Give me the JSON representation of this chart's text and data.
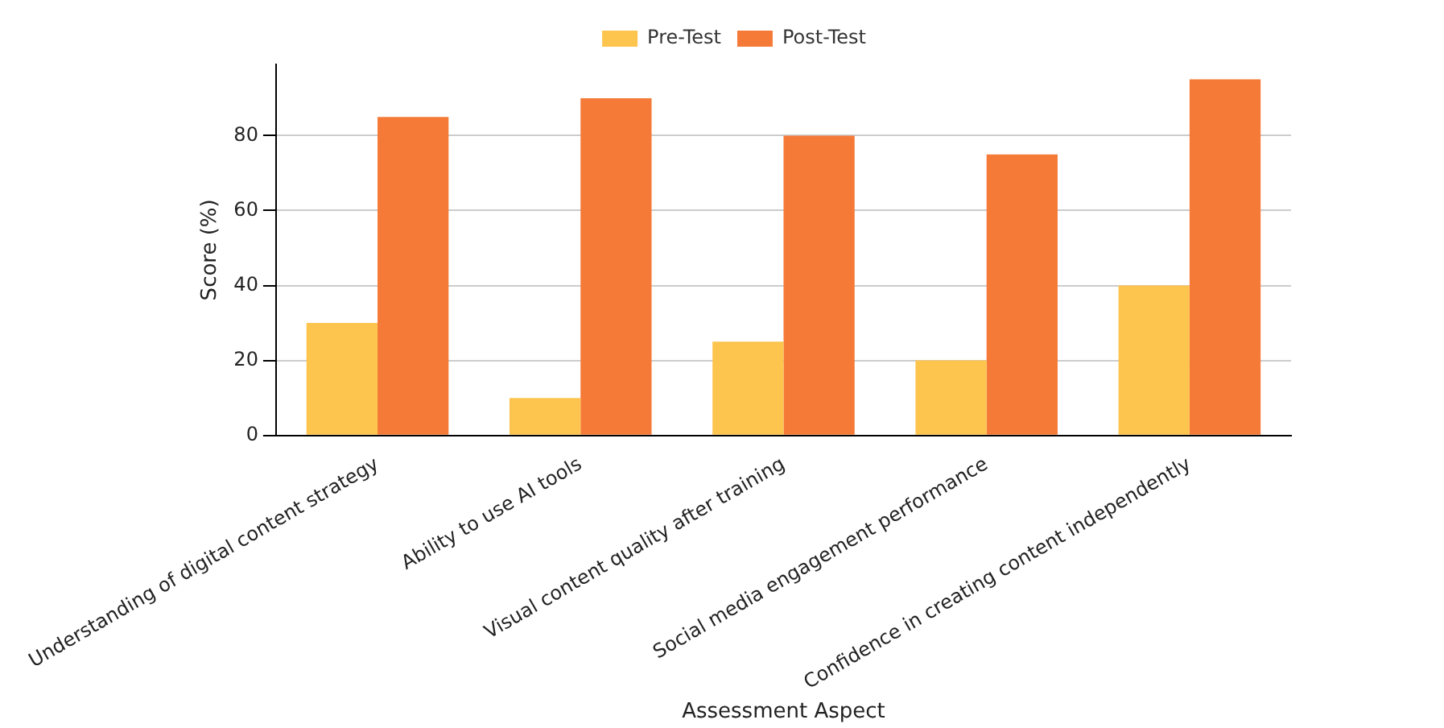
{
  "chart_data": {
    "type": "bar",
    "xlabel": "Assessment Aspect",
    "ylabel": "Score (%)",
    "categories": [
      "Understanding of digital content strategy",
      "Ability to use AI tools",
      "Visual content quality after training",
      "Social media engagement performance",
      "Confidence in creating content independently"
    ],
    "series": [
      {
        "name": "Pre-Test",
        "color": "#fdc44e",
        "values": [
          30,
          10,
          25,
          20,
          40
        ]
      },
      {
        "name": "Post-Test",
        "color": "#f57a38",
        "values": [
          85,
          90,
          80,
          75,
          95
        ]
      }
    ],
    "ylim": [
      0,
      99
    ],
    "yticks": [
      0,
      20,
      40,
      60,
      80
    ],
    "grid": "y",
    "legend": "top"
  }
}
